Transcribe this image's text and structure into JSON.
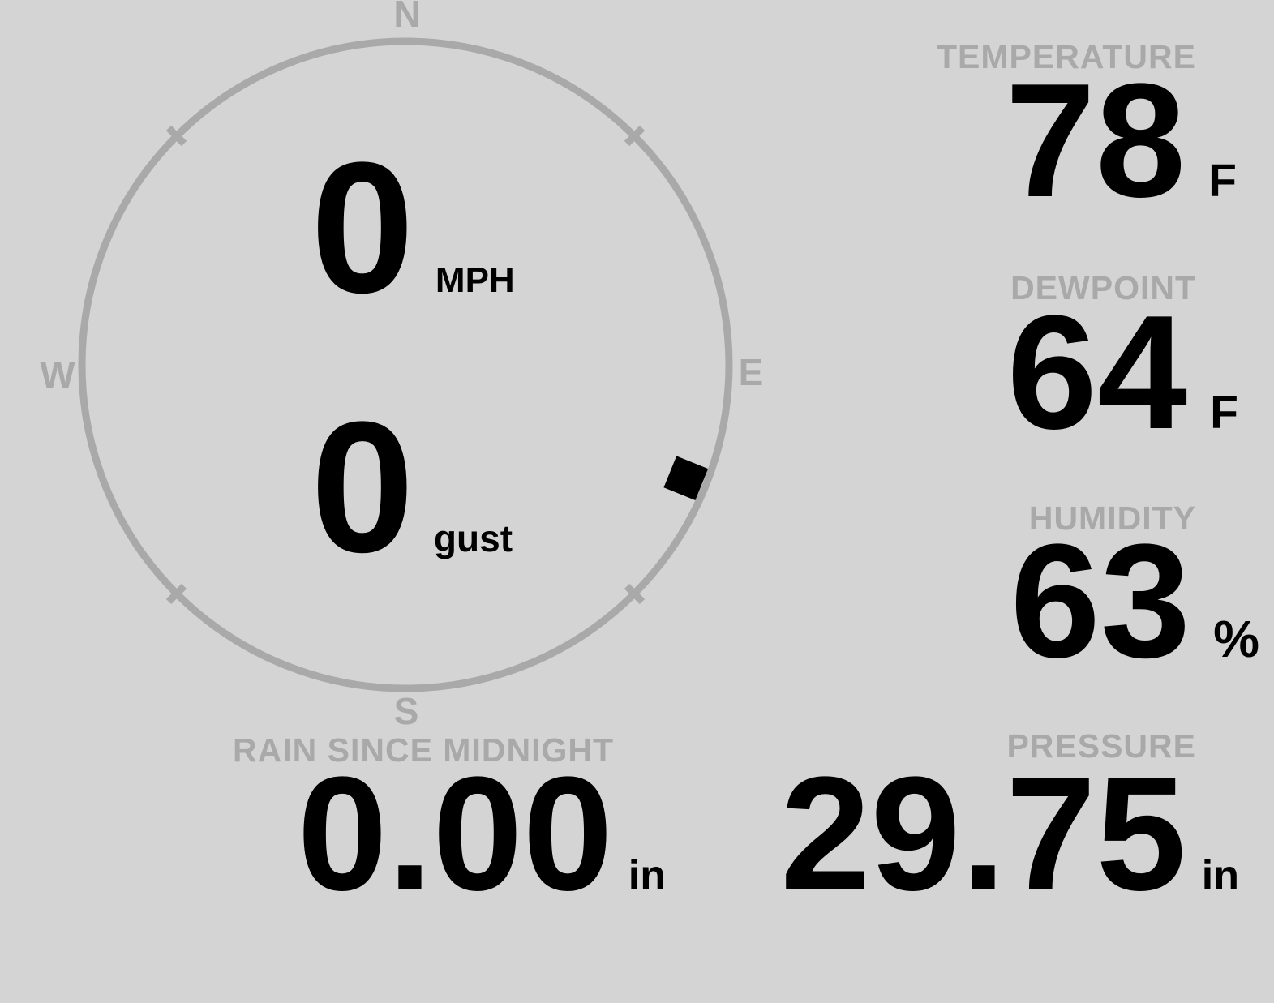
{
  "colors": {
    "background": "#d4d4d4",
    "muted": "#a9a9a9",
    "text": "#000000"
  },
  "compass": {
    "cardinals": {
      "north": "N",
      "east": "E",
      "south": "S",
      "west": "W"
    },
    "wind_speed": {
      "value": "0",
      "unit": "MPH"
    },
    "wind_gust": {
      "value": "0",
      "unit": "gust"
    },
    "wind_direction_deg": 112
  },
  "metrics": {
    "temperature": {
      "label": "TEMPERATURE",
      "value": "78",
      "unit": "F"
    },
    "dewpoint": {
      "label": "DEWPOINT",
      "value": "64",
      "unit": "F"
    },
    "humidity": {
      "label": "HUMIDITY",
      "value": "63",
      "unit": "%"
    },
    "pressure": {
      "label": "PRESSURE",
      "value": "29.75",
      "unit": "in"
    },
    "rain_since_midnight": {
      "label": "RAIN SINCE MIDNIGHT",
      "value": "0.00",
      "unit": "in"
    }
  }
}
